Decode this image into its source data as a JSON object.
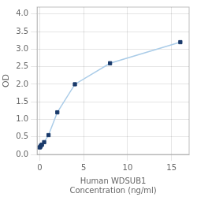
{
  "chart_data": {
    "type": "line",
    "xlabel": [
      "Human WDSUB1",
      "Concentration (ng/ml)"
    ],
    "ylabel": "OD",
    "x": [
      0,
      0.0625,
      0.125,
      0.25,
      0.5,
      1.0,
      2.0,
      4.0,
      8.0,
      16.0
    ],
    "series": [
      {
        "type": "line",
        "color": "#aacce8",
        "values": [
          0.2,
          0.22,
          0.25,
          0.28,
          0.35,
          0.55,
          1.2,
          2.0,
          2.6,
          3.2
        ]
      },
      {
        "type": "scatter",
        "color": "#1a3a6b",
        "marker": "square",
        "values": [
          0.2,
          0.22,
          0.25,
          0.28,
          0.35,
          0.55,
          1.2,
          2.0,
          2.6,
          3.2
        ]
      }
    ],
    "xlim": [
      -0.3,
      17
    ],
    "xticks": [
      0,
      5,
      10,
      15
    ],
    "ylim": [
      0,
      4.2
    ],
    "yticks": [
      {
        "value": 0,
        "label": "0.0"
      },
      0.5,
      {
        "value": 1.0,
        "label": "1.0"
      },
      1.5,
      {
        "value": 2.0,
        "label": "2.0"
      },
      2.5,
      {
        "value": 3.0,
        "label": "3.0"
      },
      3.5,
      {
        "value": 4.0,
        "label": "4.0"
      }
    ],
    "grid": true
  }
}
